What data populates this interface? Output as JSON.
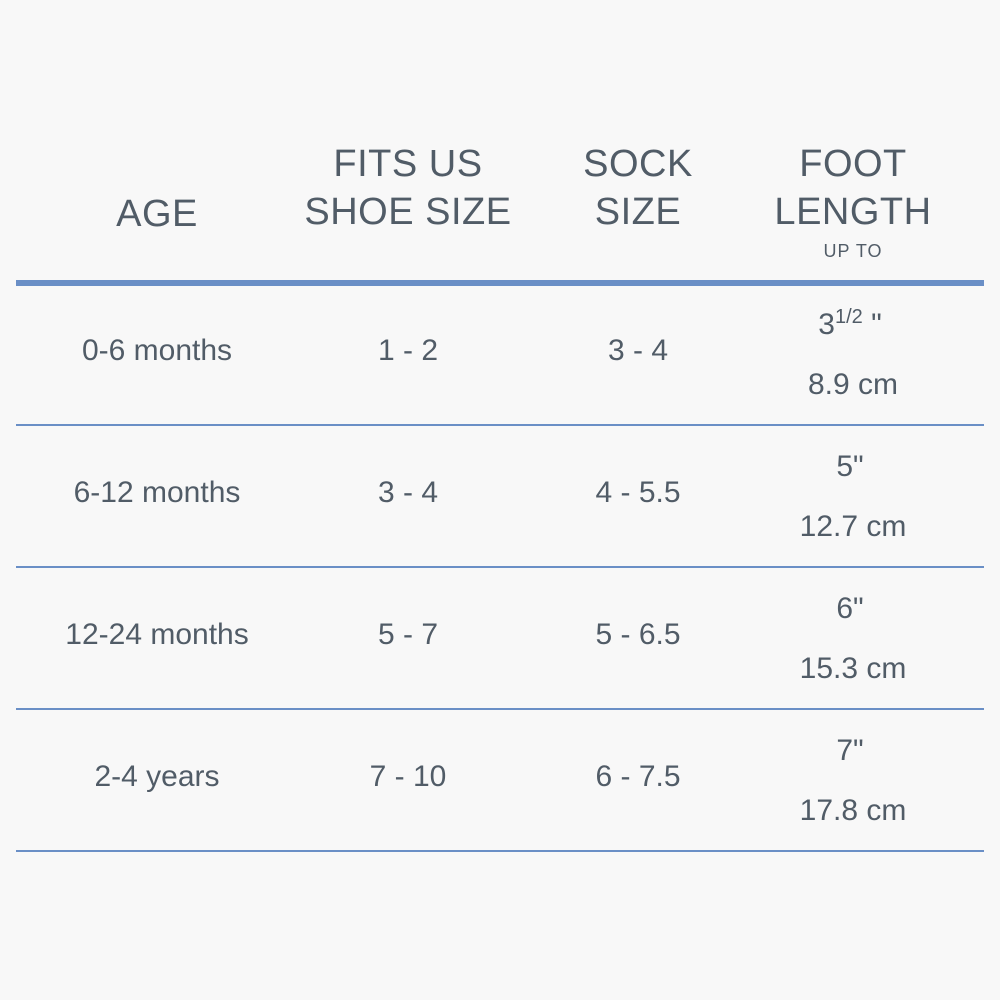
{
  "headers": {
    "age": [
      "AGE"
    ],
    "shoe": [
      "FITS US",
      "SHOE SIZE"
    ],
    "sock": [
      "SOCK",
      "SIZE"
    ],
    "foot": [
      "FOOT",
      "LENGTH"
    ],
    "foot_note": "UP TO"
  },
  "rows": [
    {
      "age": "0-6 months",
      "shoe": "1 - 2",
      "sock": "3 - 4",
      "inch_whole": "3",
      "inch_frac": "1/2",
      "inch_mark": " \"",
      "cm": "8.9 cm"
    },
    {
      "age": "6-12 months",
      "shoe": "3 - 4",
      "sock": "4 - 5.5",
      "inch_whole": "5",
      "inch_frac": "",
      "inch_mark": "\"",
      "cm": "12.7 cm"
    },
    {
      "age": "12-24 months",
      "shoe": "5 - 7",
      "sock": "5 - 6.5",
      "inch_whole": "6",
      "inch_frac": "",
      "inch_mark": "\"",
      "cm": "15.3 cm"
    },
    {
      "age": "2-4 years",
      "shoe": "7 - 10",
      "sock": "6 - 7.5",
      "inch_whole": "7",
      "inch_frac": "",
      "inch_mark": "\"",
      "cm": "17.8 cm"
    }
  ],
  "colors": {
    "text": "#515c67",
    "rule": "#6a8fc6",
    "background": "#f8f8f8"
  }
}
